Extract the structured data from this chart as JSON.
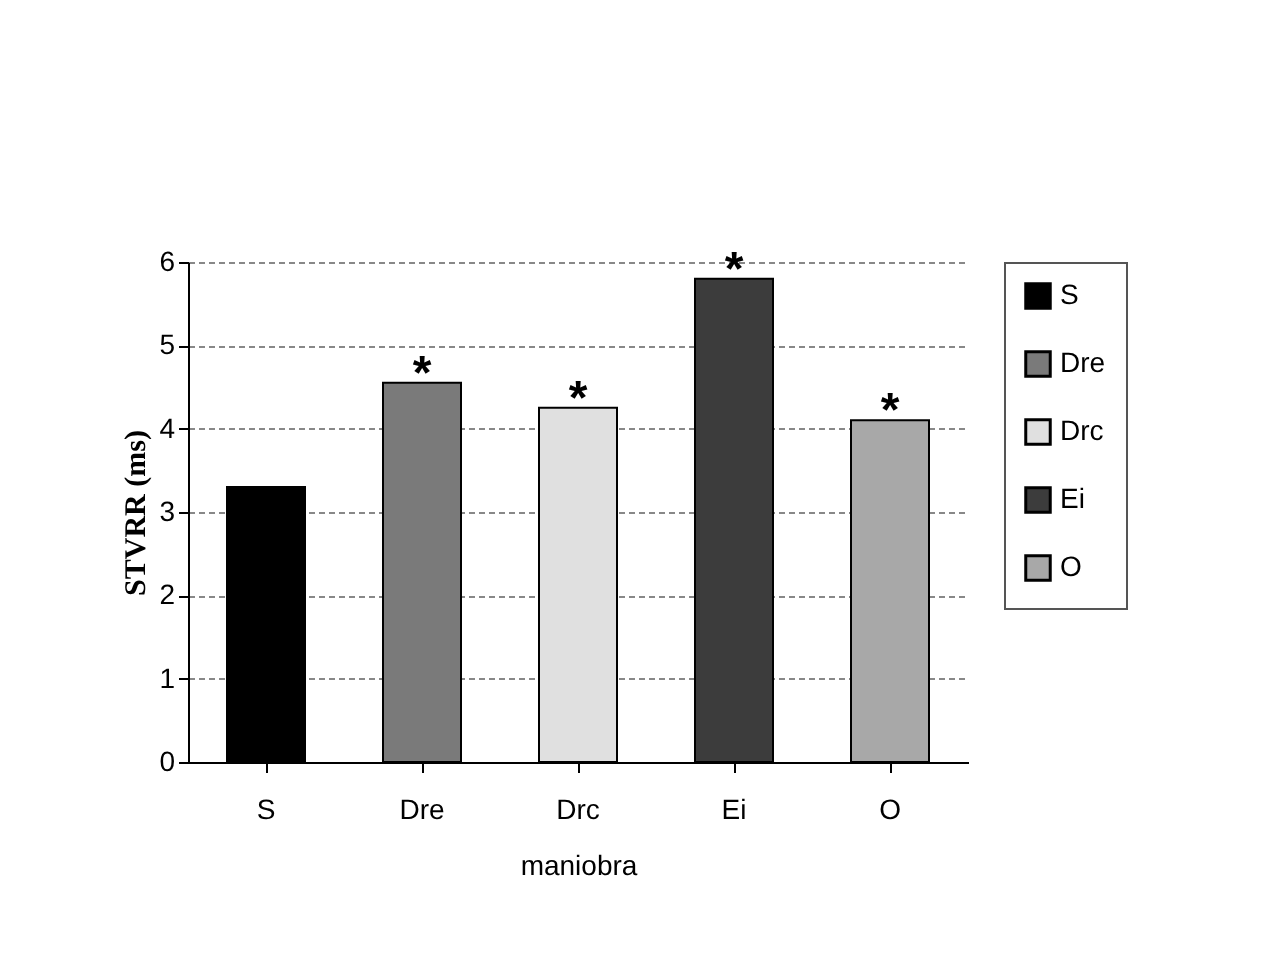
{
  "chart_data": {
    "type": "bar",
    "xlabel": "maniobra",
    "ylabel": "STVRR (ms)",
    "categories": [
      "S",
      "Dre",
      "Drc",
      "Ei",
      "O"
    ],
    "series": [
      {
        "name": "S",
        "color": "#000000",
        "values": [
          3.3,
          null,
          null,
          null,
          null
        ]
      },
      {
        "name": "Dre",
        "color": "#7a7a7a",
        "values": [
          null,
          4.55,
          null,
          null,
          null
        ]
      },
      {
        "name": "Drc",
        "color": "#e0e0e0",
        "values": [
          null,
          null,
          4.25,
          null,
          null
        ]
      },
      {
        "name": "Ei",
        "color": "#3c3c3c",
        "values": [
          null,
          null,
          null,
          5.8,
          null
        ]
      },
      {
        "name": "O",
        "color": "#a8a8a8",
        "values": [
          null,
          null,
          null,
          null,
          4.1
        ]
      }
    ],
    "ylim": [
      0,
      6
    ],
    "yticks": [
      0,
      1,
      2,
      3,
      4,
      5,
      6
    ],
    "grid": "y",
    "legend": "right",
    "annotations": [
      {
        "text": "*",
        "x": "Dre",
        "y": 4.55
      },
      {
        "text": "*",
        "x": "Drc",
        "y": 4.25
      },
      {
        "text": "*",
        "x": "Ei",
        "y": 5.8
      },
      {
        "text": "*",
        "x": "O",
        "y": 4.1
      }
    ]
  }
}
